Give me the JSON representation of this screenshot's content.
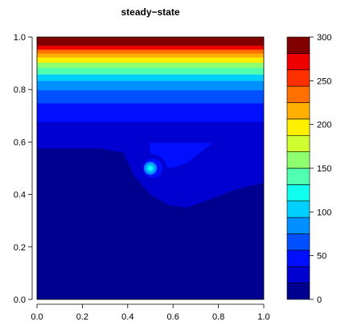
{
  "chart_data": {
    "type": "heatmap",
    "title": "steady−state",
    "xlabel": "",
    "ylabel": "",
    "xlim": [
      0,
      1
    ],
    "ylim": [
      0,
      1
    ],
    "x_ticks": [
      "0.0",
      "0.2",
      "0.4",
      "0.6",
      "0.8",
      "1.0"
    ],
    "y_ticks": [
      "0.0",
      "0.2",
      "0.4",
      "0.6",
      "0.8",
      "1.0"
    ],
    "colorbar": {
      "range": [
        0,
        300
      ],
      "ticks": [
        "0",
        "50",
        "100",
        "150",
        "200",
        "250",
        "300"
      ],
      "levels": 15,
      "colors": [
        "#00008F",
        "#0000D0",
        "#0010FF",
        "#0050FF",
        "#0090FF",
        "#00CFFF",
        "#10FFEF",
        "#50FFAF",
        "#90FF6F",
        "#CFFF30",
        "#FFEF00",
        "#FFB000",
        "#FF7000",
        "#FF3000",
        "#EF0000",
        "#800000"
      ]
    },
    "field": {
      "description_value_units": "temperature-like scalar, 0-300",
      "top_boundary_value": 300,
      "background_value": 0,
      "hotspot": {
        "x": 0.5,
        "y": 0.5,
        "value": 120
      },
      "rows": [
        {
          "y": 0.99,
          "value": 300
        },
        {
          "y": 0.97,
          "value": 285
        },
        {
          "y": 0.955,
          "value": 265
        },
        {
          "y": 0.94,
          "value": 240
        },
        {
          "y": 0.925,
          "value": 215
        },
        {
          "y": 0.905,
          "value": 190
        },
        {
          "y": 0.885,
          "value": 165
        },
        {
          "y": 0.86,
          "value": 140
        },
        {
          "y": 0.835,
          "value": 110
        },
        {
          "y": 0.8,
          "value": 85
        },
        {
          "y": 0.75,
          "value": 60
        },
        {
          "y": 0.68,
          "value": 40
        },
        {
          "y": 0.6,
          "value": 20
        }
      ]
    }
  }
}
